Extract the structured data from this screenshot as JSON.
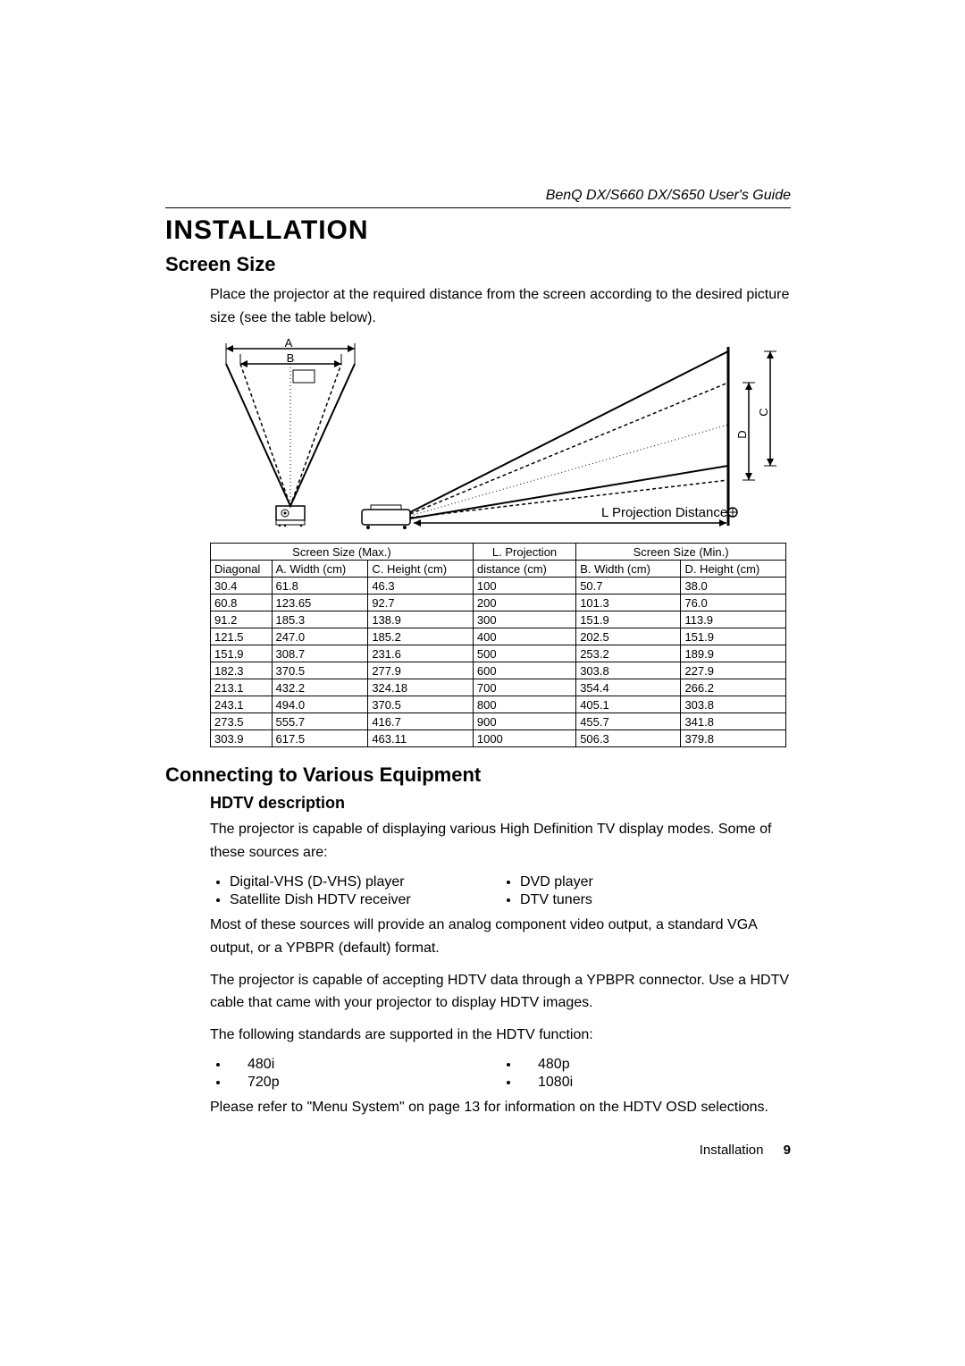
{
  "header": {
    "guide_title": "BenQ DX/S660  DX/S650 User's Guide"
  },
  "section": {
    "title": "INSTALLATION"
  },
  "screen_size": {
    "heading": "Screen Size",
    "intro": "Place the projector at the required distance from the screen according to the desired picture size (see the table below).",
    "diagram_labels": {
      "A": "A",
      "B": "B",
      "C": "C",
      "D": "D",
      "L": "L  Projection Distance"
    },
    "table": {
      "header_row1": [
        "Screen Size (Max.)",
        "L. Projection",
        "Screen Size (Min.)"
      ],
      "header_row2": [
        "Diagonal",
        "A. Width (cm)",
        "C. Height (cm)",
        "distance (cm)",
        "B. Width (cm)",
        "D. Height (cm)"
      ],
      "rows": [
        [
          "30.4",
          "61.8",
          "46.3",
          "100",
          "50.7",
          "38.0"
        ],
        [
          "60.8",
          "123.65",
          "92.7",
          "200",
          "101.3",
          "76.0"
        ],
        [
          "91.2",
          "185.3",
          "138.9",
          "300",
          "151.9",
          "113.9"
        ],
        [
          "121.5",
          "247.0",
          "185.2",
          "400",
          "202.5",
          "151.9"
        ],
        [
          "151.9",
          "308.7",
          "231.6",
          "500",
          "253.2",
          "189.9"
        ],
        [
          "182.3",
          "370.5",
          "277.9",
          "600",
          "303.8",
          "227.9"
        ],
        [
          "213.1",
          "432.2",
          "324.18",
          "700",
          "354.4",
          "266.2"
        ],
        [
          "243.1",
          "494.0",
          "370.5",
          "800",
          "405.1",
          "303.8"
        ],
        [
          "273.5",
          "555.7",
          "416.7",
          "900",
          "455.7",
          "341.8"
        ],
        [
          "303.9",
          "617.5",
          "463.11",
          "1000",
          "506.3",
          "379.8"
        ]
      ]
    }
  },
  "connecting": {
    "heading": "Connecting to Various Equipment",
    "hdtv_heading": "HDTV description",
    "p1": "The projector is capable of displaying various High Definition TV display modes. Some of these sources are:",
    "sources_left": [
      "Digital-VHS (D-VHS) player",
      "Satellite Dish HDTV receiver"
    ],
    "sources_right": [
      "DVD player",
      "DTV tuners"
    ],
    "p2a": "Most of these sources will provide an analog component video output, a standard VGA output, or a YP",
    "p2b": " (default) format.",
    "p3a": "The projector is capable of accepting HDTV data through a YP",
    "p3b": " connector. Use a HDTV cable that came with your projector to display HDTV images.",
    "p4": "The following standards are supported in the HDTV function:",
    "stds_left": [
      "480i",
      "720p"
    ],
    "stds_right": [
      "480p",
      "1080i"
    ],
    "p5": "Please refer to \"Menu System\" on page 13 for information on the HDTV OSD selections.",
    "pbpr": "BPR"
  },
  "footer": {
    "section": "Installation",
    "page": "9"
  }
}
